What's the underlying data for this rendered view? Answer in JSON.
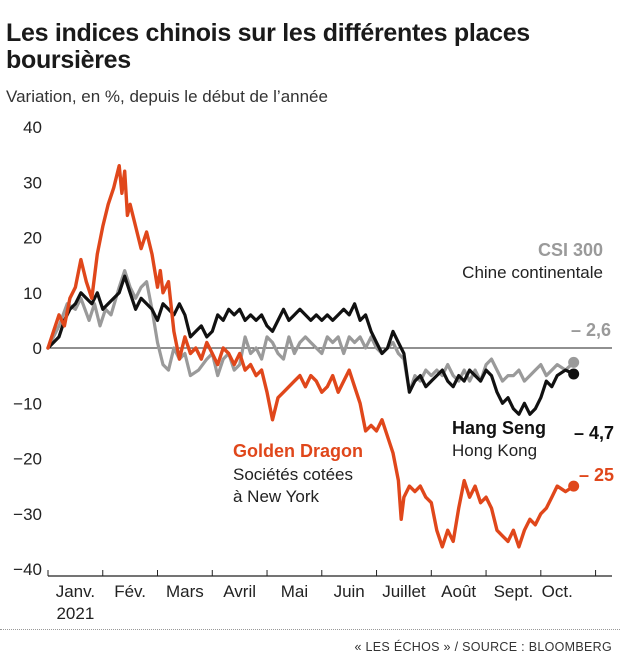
{
  "header": {
    "title": "Les indices chinois sur les différentes places boursières",
    "subtitle": "Variation, en %, depuis le début de l’année"
  },
  "footer": {
    "source": "« LES ÉCHOS » / SOURCE : BLOOMBERG"
  },
  "colors": {
    "csi": "#9a9a9a",
    "hang": "#111111",
    "golden": "#e0471b",
    "axis": "#222222"
  },
  "chart_data": {
    "type": "line",
    "title": "Les indices chinois sur les différentes places boursières",
    "subtitle": "Variation, en %, depuis le début de l’année",
    "ylim": [
      -40,
      40
    ],
    "xlim": [
      0,
      10.3
    ],
    "y_ticks": [
      "40",
      "30",
      "20",
      "10",
      "0",
      "−10",
      "−20",
      "−30",
      "−40"
    ],
    "y_tick_values": [
      40,
      30,
      20,
      10,
      0,
      -10,
      -20,
      -30,
      -40
    ],
    "x_ticks": [
      {
        "label": "Janv.",
        "sub": "2021",
        "month": 0.5
      },
      {
        "label": "Fév.",
        "sub": "",
        "month": 1.5
      },
      {
        "label": "Mars",
        "sub": "",
        "month": 2.5
      },
      {
        "label": "Avril",
        "sub": "",
        "month": 3.5
      },
      {
        "label": "Mai",
        "sub": "",
        "month": 4.5
      },
      {
        "label": "Juin",
        "sub": "",
        "month": 5.5
      },
      {
        "label": "Juillet",
        "sub": "",
        "month": 6.5
      },
      {
        "label": "Août",
        "sub": "",
        "month": 7.5
      },
      {
        "label": "Sept.",
        "sub": "",
        "month": 8.5
      },
      {
        "label": "Oct.",
        "sub": "",
        "month": 9.3
      }
    ],
    "series": [
      {
        "key": "csi",
        "name": "CSI 300",
        "subname": "Chine continentale",
        "end_label": "– 2,6",
        "points": [
          [
            0,
            0
          ],
          [
            0.1,
            2
          ],
          [
            0.2,
            4
          ],
          [
            0.35,
            8
          ],
          [
            0.5,
            7
          ],
          [
            0.6,
            9
          ],
          [
            0.75,
            5
          ],
          [
            0.85,
            8
          ],
          [
            0.95,
            4
          ],
          [
            1.05,
            7
          ],
          [
            1.15,
            6
          ],
          [
            1.3,
            11
          ],
          [
            1.4,
            14
          ],
          [
            1.5,
            11
          ],
          [
            1.6,
            9
          ],
          [
            1.7,
            11
          ],
          [
            1.8,
            12
          ],
          [
            1.9,
            7
          ],
          [
            2.0,
            1
          ],
          [
            2.1,
            -3
          ],
          [
            2.2,
            -4
          ],
          [
            2.3,
            0
          ],
          [
            2.4,
            -2
          ],
          [
            2.5,
            -1
          ],
          [
            2.6,
            -5
          ],
          [
            2.75,
            -4
          ],
          [
            2.9,
            -2
          ],
          [
            3.0,
            -1
          ],
          [
            3.1,
            -5
          ],
          [
            3.2,
            -2
          ],
          [
            3.3,
            -1
          ],
          [
            3.4,
            -4
          ],
          [
            3.5,
            -3
          ],
          [
            3.6,
            2
          ],
          [
            3.7,
            -1
          ],
          [
            3.8,
            0
          ],
          [
            3.9,
            -2
          ],
          [
            4.0,
            2
          ],
          [
            4.1,
            1
          ],
          [
            4.2,
            -1
          ],
          [
            4.3,
            -2
          ],
          [
            4.4,
            2
          ],
          [
            4.5,
            -1
          ],
          [
            4.6,
            1
          ],
          [
            4.7,
            2
          ],
          [
            4.8,
            1
          ],
          [
            4.9,
            0
          ],
          [
            5.0,
            -1
          ],
          [
            5.1,
            2
          ],
          [
            5.2,
            1
          ],
          [
            5.3,
            2
          ],
          [
            5.4,
            -1
          ],
          [
            5.5,
            2
          ],
          [
            5.6,
            1
          ],
          [
            5.7,
            2
          ],
          [
            5.8,
            0
          ],
          [
            5.9,
            2
          ],
          [
            6.0,
            0
          ],
          [
            6.1,
            -1
          ],
          [
            6.2,
            0
          ],
          [
            6.3,
            1
          ],
          [
            6.4,
            -1
          ],
          [
            6.5,
            -2
          ],
          [
            6.6,
            -8
          ],
          [
            6.7,
            -5
          ],
          [
            6.8,
            -6
          ],
          [
            6.9,
            -4
          ],
          [
            7.0,
            -5
          ],
          [
            7.1,
            -4
          ],
          [
            7.2,
            -5
          ],
          [
            7.3,
            -3
          ],
          [
            7.4,
            -5
          ],
          [
            7.5,
            -6
          ],
          [
            7.6,
            -4
          ],
          [
            7.7,
            -6
          ],
          [
            7.8,
            -4
          ],
          [
            7.9,
            -6
          ],
          [
            8.0,
            -3
          ],
          [
            8.1,
            -2
          ],
          [
            8.2,
            -4
          ],
          [
            8.3,
            -6
          ],
          [
            8.4,
            -5
          ],
          [
            8.5,
            -5
          ],
          [
            8.6,
            -4
          ],
          [
            8.7,
            -6
          ],
          [
            8.8,
            -5
          ],
          [
            8.9,
            -4
          ],
          [
            9.0,
            -3
          ],
          [
            9.1,
            -5
          ],
          [
            9.2,
            -4
          ],
          [
            9.3,
            -3
          ],
          [
            9.45,
            -4
          ],
          [
            9.6,
            -2.6
          ]
        ]
      },
      {
        "key": "hang",
        "name": "Hang Seng",
        "subname": "Hong Kong",
        "end_label": "– 4,7",
        "points": [
          [
            0,
            0
          ],
          [
            0.1,
            1
          ],
          [
            0.2,
            2
          ],
          [
            0.3,
            5
          ],
          [
            0.4,
            7
          ],
          [
            0.5,
            8
          ],
          [
            0.6,
            10
          ],
          [
            0.7,
            9
          ],
          [
            0.8,
            8
          ],
          [
            0.9,
            10
          ],
          [
            1.0,
            7
          ],
          [
            1.1,
            8
          ],
          [
            1.2,
            9
          ],
          [
            1.3,
            10
          ],
          [
            1.4,
            13
          ],
          [
            1.5,
            10
          ],
          [
            1.6,
            7
          ],
          [
            1.7,
            9
          ],
          [
            1.8,
            8
          ],
          [
            1.9,
            7
          ],
          [
            2.0,
            5
          ],
          [
            2.1,
            8
          ],
          [
            2.2,
            7
          ],
          [
            2.3,
            6
          ],
          [
            2.4,
            8
          ],
          [
            2.5,
            6
          ],
          [
            2.6,
            2
          ],
          [
            2.7,
            3
          ],
          [
            2.8,
            4
          ],
          [
            2.9,
            2
          ],
          [
            3.0,
            3
          ],
          [
            3.1,
            6
          ],
          [
            3.2,
            5
          ],
          [
            3.3,
            7
          ],
          [
            3.4,
            6
          ],
          [
            3.5,
            7
          ],
          [
            3.6,
            5
          ],
          [
            3.7,
            6
          ],
          [
            3.8,
            5
          ],
          [
            3.9,
            6
          ],
          [
            4.0,
            4
          ],
          [
            4.1,
            3
          ],
          [
            4.2,
            5
          ],
          [
            4.3,
            7
          ],
          [
            4.4,
            5
          ],
          [
            4.5,
            6
          ],
          [
            4.6,
            7
          ],
          [
            4.7,
            6
          ],
          [
            4.8,
            5
          ],
          [
            4.9,
            6
          ],
          [
            5.0,
            5
          ],
          [
            5.1,
            6
          ],
          [
            5.2,
            5
          ],
          [
            5.3,
            6
          ],
          [
            5.4,
            7
          ],
          [
            5.5,
            6
          ],
          [
            5.6,
            8
          ],
          [
            5.7,
            5
          ],
          [
            5.8,
            6
          ],
          [
            5.9,
            3
          ],
          [
            6.0,
            1
          ],
          [
            6.1,
            -1
          ],
          [
            6.2,
            0
          ],
          [
            6.3,
            3
          ],
          [
            6.4,
            1
          ],
          [
            6.5,
            -1
          ],
          [
            6.6,
            -8
          ],
          [
            6.7,
            -6
          ],
          [
            6.8,
            -5
          ],
          [
            6.9,
            -7
          ],
          [
            7.0,
            -6
          ],
          [
            7.1,
            -5
          ],
          [
            7.2,
            -4
          ],
          [
            7.3,
            -6
          ],
          [
            7.4,
            -7
          ],
          [
            7.5,
            -5
          ],
          [
            7.6,
            -6
          ],
          [
            7.7,
            -4
          ],
          [
            7.8,
            -5
          ],
          [
            7.9,
            -6
          ],
          [
            8.0,
            -4
          ],
          [
            8.1,
            -5
          ],
          [
            8.2,
            -8
          ],
          [
            8.3,
            -10
          ],
          [
            8.4,
            -9
          ],
          [
            8.5,
            -11
          ],
          [
            8.6,
            -12
          ],
          [
            8.7,
            -10
          ],
          [
            8.8,
            -12
          ],
          [
            8.9,
            -11
          ],
          [
            9.0,
            -9
          ],
          [
            9.1,
            -6
          ],
          [
            9.2,
            -7
          ],
          [
            9.3,
            -5
          ],
          [
            9.45,
            -4
          ],
          [
            9.6,
            -4.7
          ]
        ]
      },
      {
        "key": "golden",
        "name": "Golden Dragon",
        "subname": "Sociétés cotées",
        "subname2": "à New York",
        "end_label": "– 25",
        "points": [
          [
            0,
            0
          ],
          [
            0.1,
            3
          ],
          [
            0.2,
            6
          ],
          [
            0.3,
            4
          ],
          [
            0.4,
            9
          ],
          [
            0.5,
            11
          ],
          [
            0.6,
            16
          ],
          [
            0.7,
            12
          ],
          [
            0.8,
            9
          ],
          [
            0.9,
            17
          ],
          [
            1.0,
            22
          ],
          [
            1.1,
            26
          ],
          [
            1.2,
            29
          ],
          [
            1.3,
            33
          ],
          [
            1.35,
            28
          ],
          [
            1.4,
            32
          ],
          [
            1.45,
            24
          ],
          [
            1.5,
            26
          ],
          [
            1.6,
            22
          ],
          [
            1.7,
            18
          ],
          [
            1.8,
            21
          ],
          [
            1.9,
            17
          ],
          [
            2.0,
            11
          ],
          [
            2.05,
            14
          ],
          [
            2.1,
            10
          ],
          [
            2.2,
            12
          ],
          [
            2.3,
            3
          ],
          [
            2.4,
            -2
          ],
          [
            2.5,
            2
          ],
          [
            2.6,
            -1
          ],
          [
            2.7,
            0
          ],
          [
            2.8,
            -2
          ],
          [
            2.9,
            1
          ],
          [
            3.0,
            -1
          ],
          [
            3.1,
            -3
          ],
          [
            3.2,
            0
          ],
          [
            3.3,
            -1
          ],
          [
            3.4,
            -3
          ],
          [
            3.5,
            -1
          ],
          [
            3.6,
            -4
          ],
          [
            3.7,
            -3
          ],
          [
            3.8,
            -5
          ],
          [
            3.9,
            -4
          ],
          [
            4.0,
            -8
          ],
          [
            4.1,
            -13
          ],
          [
            4.2,
            -9
          ],
          [
            4.3,
            -8
          ],
          [
            4.4,
            -7
          ],
          [
            4.5,
            -6
          ],
          [
            4.6,
            -5
          ],
          [
            4.7,
            -7
          ],
          [
            4.8,
            -5
          ],
          [
            4.9,
            -6
          ],
          [
            5.0,
            -8
          ],
          [
            5.1,
            -7
          ],
          [
            5.2,
            -5
          ],
          [
            5.3,
            -8
          ],
          [
            5.4,
            -6
          ],
          [
            5.5,
            -4
          ],
          [
            5.6,
            -7
          ],
          [
            5.7,
            -10
          ],
          [
            5.8,
            -15
          ],
          [
            5.9,
            -14
          ],
          [
            6.0,
            -15
          ],
          [
            6.1,
            -13
          ],
          [
            6.2,
            -16
          ],
          [
            6.3,
            -19
          ],
          [
            6.4,
            -24
          ],
          [
            6.45,
            -31
          ],
          [
            6.5,
            -27
          ],
          [
            6.6,
            -25
          ],
          [
            6.7,
            -26
          ],
          [
            6.8,
            -25
          ],
          [
            6.9,
            -27
          ],
          [
            7.0,
            -28
          ],
          [
            7.1,
            -33
          ],
          [
            7.2,
            -36
          ],
          [
            7.3,
            -33
          ],
          [
            7.4,
            -35
          ],
          [
            7.5,
            -29
          ],
          [
            7.6,
            -24
          ],
          [
            7.7,
            -27
          ],
          [
            7.8,
            -25
          ],
          [
            7.9,
            -28
          ],
          [
            8.0,
            -27
          ],
          [
            8.1,
            -29
          ],
          [
            8.2,
            -33
          ],
          [
            8.3,
            -34
          ],
          [
            8.4,
            -35
          ],
          [
            8.5,
            -33
          ],
          [
            8.6,
            -36
          ],
          [
            8.7,
            -33
          ],
          [
            8.8,
            -31
          ],
          [
            8.9,
            -32
          ],
          [
            9.0,
            -30
          ],
          [
            9.1,
            -29
          ],
          [
            9.2,
            -27
          ],
          [
            9.3,
            -25
          ],
          [
            9.45,
            -26
          ],
          [
            9.6,
            -25
          ]
        ]
      }
    ],
    "grid": false,
    "zero_line": true
  }
}
